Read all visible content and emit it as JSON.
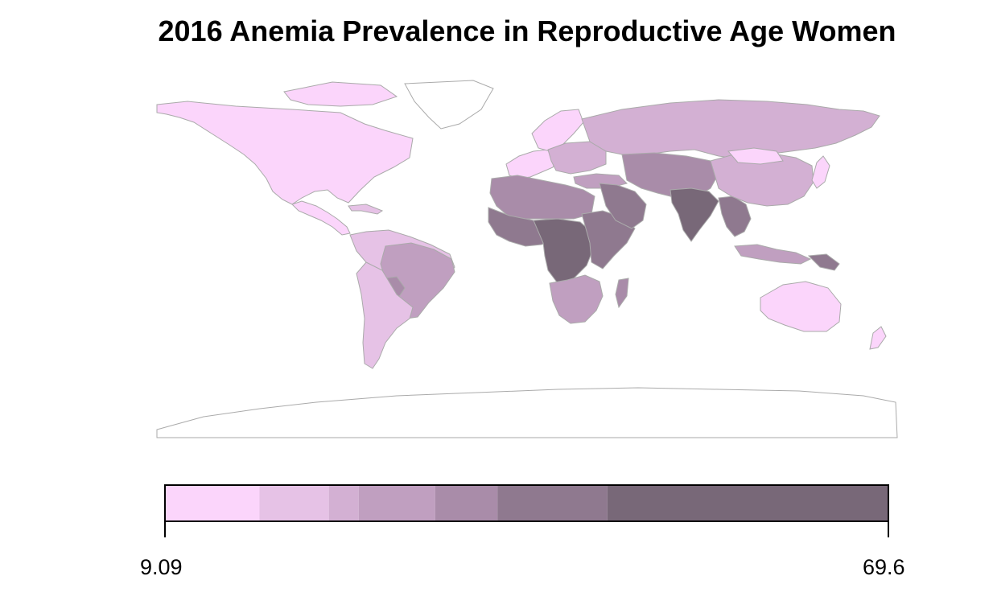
{
  "title": "2016 Anemia Prevalence in Reproductive Age Women",
  "legend": {
    "min_label": "9.09",
    "max_label": "69.6",
    "min": 9.09,
    "max": 69.6,
    "breaks": [
      9.09,
      17.0,
      22.8,
      25.3,
      31.7,
      36.9,
      46.1,
      69.6
    ],
    "colors": [
      "#fbd5fb",
      "#e6c2e6",
      "#d3b0d3",
      "#c09fc0",
      "#a98ca9",
      "#8f798f",
      "#786878"
    ]
  },
  "map": {
    "border_color": "#aaaaaa",
    "no_data_color": "#ffffff"
  }
}
